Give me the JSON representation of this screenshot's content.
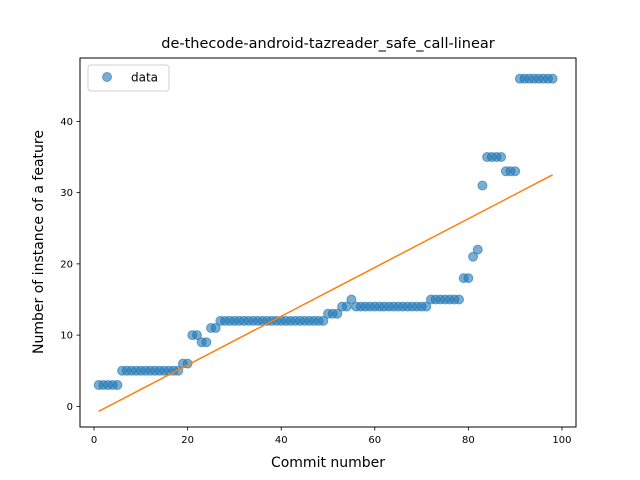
{
  "chart_data": {
    "type": "scatter",
    "title": "de-thecode-android-tazreader_safe_call-linear",
    "xlabel": "Commit number",
    "ylabel": "Number of instance of a feature",
    "xlim": [
      -3,
      103
    ],
    "ylim": [
      -2.9,
      48.9
    ],
    "xticks": [
      0,
      20,
      40,
      60,
      80,
      100
    ],
    "yticks": [
      0,
      10,
      20,
      30,
      40
    ],
    "legend": {
      "position": "top-left",
      "entries": [
        "data"
      ]
    },
    "grid": false,
    "series": [
      {
        "name": "data",
        "kind": "scatter",
        "color": "#1f77b4",
        "x": [
          1,
          2,
          3,
          4,
          5,
          6,
          7,
          8,
          9,
          10,
          11,
          12,
          13,
          14,
          15,
          16,
          17,
          18,
          19,
          20,
          21,
          22,
          23,
          24,
          25,
          26,
          27,
          28,
          29,
          30,
          31,
          32,
          33,
          34,
          35,
          36,
          37,
          38,
          39,
          40,
          41,
          42,
          43,
          44,
          45,
          46,
          47,
          48,
          49,
          50,
          51,
          52,
          53,
          54,
          55,
          56,
          57,
          58,
          59,
          60,
          61,
          62,
          63,
          64,
          65,
          66,
          67,
          68,
          69,
          70,
          71,
          72,
          73,
          74,
          75,
          76,
          77,
          78,
          79,
          80,
          81,
          82,
          83,
          84,
          85,
          86,
          87,
          88,
          89,
          90,
          91,
          92,
          93,
          94,
          95,
          96,
          97,
          98
        ],
        "y": [
          3,
          3,
          3,
          3,
          3,
          5,
          5,
          5,
          5,
          5,
          5,
          5,
          5,
          5,
          5,
          5,
          5,
          5,
          6,
          6,
          10,
          10,
          9,
          9,
          11,
          11,
          12,
          12,
          12,
          12,
          12,
          12,
          12,
          12,
          12,
          12,
          12,
          12,
          12,
          12,
          12,
          12,
          12,
          12,
          12,
          12,
          12,
          12,
          12,
          13,
          13,
          13,
          14,
          14,
          15,
          14,
          14,
          14,
          14,
          14,
          14,
          14,
          14,
          14,
          14,
          14,
          14,
          14,
          14,
          14,
          14,
          15,
          15,
          15,
          15,
          15,
          15,
          15,
          18,
          18,
          21,
          22,
          31,
          35,
          35,
          35,
          35,
          33,
          33,
          33,
          46,
          46,
          46,
          46,
          46,
          46,
          46,
          46
        ]
      },
      {
        "name": "",
        "kind": "line",
        "color": "#ff7f0e",
        "x": [
          1,
          98
        ],
        "y": [
          -0.7,
          32.5
        ]
      }
    ]
  }
}
